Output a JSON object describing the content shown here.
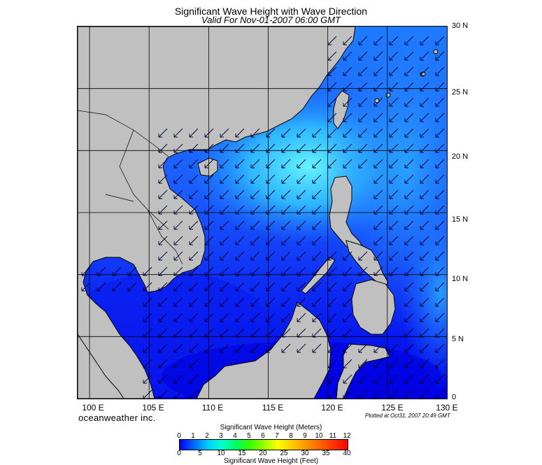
{
  "header": {
    "title": "Significant Wave Height with Wave Direction",
    "subtitle": "Valid For Nov-01-2007 06:00 GMT"
  },
  "map": {
    "lat_labels": [
      "30 N",
      "25 N",
      "20 N",
      "15 N",
      "10 N",
      "5 N",
      "0"
    ],
    "lon_labels": [
      "100 E",
      "105 E",
      "110 E",
      "115 E",
      "120 E",
      "125 E",
      "130 E"
    ],
    "extent": {
      "lon": [
        99,
        130
      ],
      "lat": [
        0,
        30
      ]
    },
    "colors": {
      "land": "#c0c0c0",
      "deep_sea": "#0000ee",
      "mid_sea": "#1e6cff",
      "high_sea": "#33ccff",
      "peak": "#55f0ff"
    },
    "arrow_direction": "toward-southwest"
  },
  "footer": {
    "brand": "oceanweather inc.",
    "plotted": "Plotted at Oct31, 2007 20:49 GMT"
  },
  "colorbar": {
    "title_top": "Significant Wave Height (Meters)",
    "title_bottom": "Significant Wave Height (Feet)",
    "meters": [
      "0",
      "1",
      "2",
      "3",
      "4",
      "5",
      "6",
      "7",
      "8",
      "9",
      "10",
      "11",
      "12"
    ],
    "feet": [
      "0",
      "5",
      "10",
      "15",
      "20",
      "25",
      "30",
      "35",
      "40"
    ],
    "stops": [
      "#0000ff",
      "#0066ff",
      "#00ccff",
      "#00ffcc",
      "#00ff66",
      "#33ff00",
      "#99ff00",
      "#ffff00",
      "#ffcc00",
      "#ff9900",
      "#ff6600",
      "#ff3300",
      "#ff0000"
    ]
  }
}
